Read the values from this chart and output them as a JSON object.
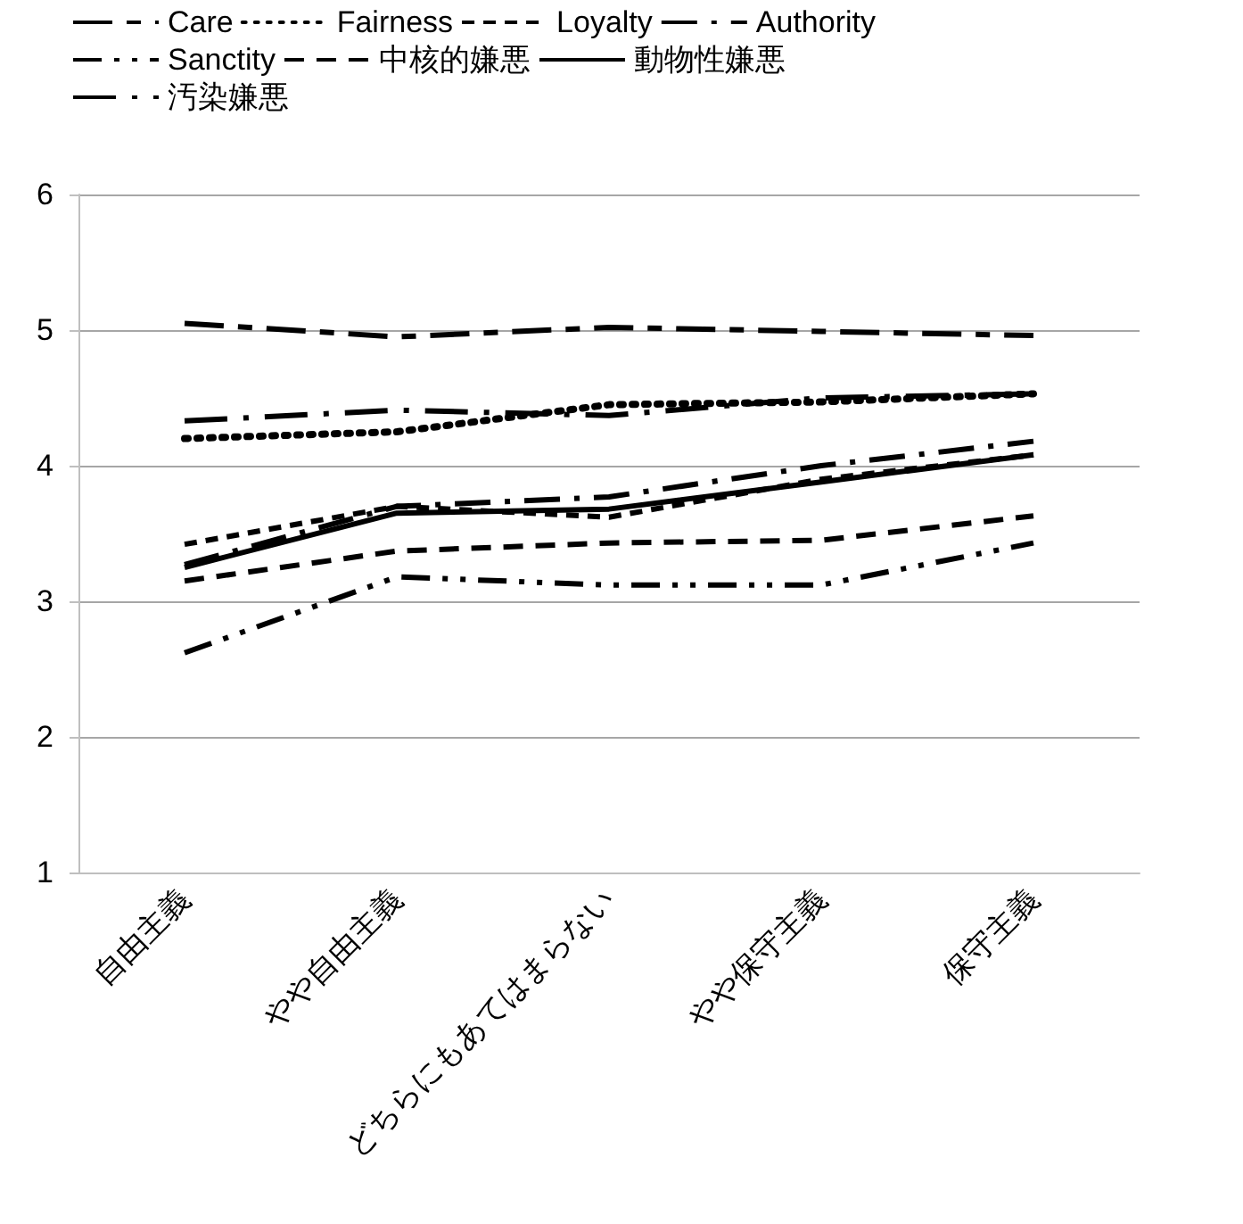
{
  "chart_data": {
    "type": "line",
    "categories": [
      "自由主義",
      "やや自由主義",
      "どちらにもあてはまらない",
      "やや保守主義",
      "保守主義"
    ],
    "series": [
      {
        "name": "Care",
        "color": "#000000",
        "line_style": "dashed",
        "values": [
          5.05,
          4.95,
          5.02,
          4.99,
          4.96
        ]
      },
      {
        "name": "Fairness",
        "color": "#000000",
        "line_style": "dotted",
        "values": [
          4.2,
          4.25,
          4.45,
          4.47,
          4.53
        ]
      },
      {
        "name": "Loyalty",
        "color": "#000000",
        "line_style": "dashed",
        "values": [
          3.42,
          3.7,
          3.62,
          3.9,
          4.08
        ]
      },
      {
        "name": "Authority",
        "color": "#000000",
        "line_style": "dashed",
        "values": [
          3.27,
          3.7,
          3.77,
          4.0,
          4.18
        ]
      },
      {
        "name": "Sanctity",
        "color": "#000000",
        "line_style": "dashed",
        "values": [
          2.62,
          3.18,
          3.12,
          3.12,
          3.43
        ]
      },
      {
        "name": "中核的嫌悪",
        "color": "#000000",
        "line_style": "dashed",
        "values": [
          3.15,
          3.37,
          3.43,
          3.45,
          3.63
        ]
      },
      {
        "name": "動物性嫌悪",
        "color": "#000000",
        "line_style": "solid",
        "values": [
          3.25,
          3.65,
          3.68,
          3.88,
          4.08
        ]
      },
      {
        "name": "汚染嫌悪",
        "color": "#000000",
        "line_style": "dashed",
        "values": [
          4.33,
          4.41,
          4.37,
          4.5,
          4.53
        ]
      }
    ],
    "ylim": [
      1,
      6
    ],
    "yticks": [
      1,
      2,
      3,
      4,
      5,
      6
    ],
    "grid": "y",
    "legend": "top left",
    "marker": "none"
  }
}
